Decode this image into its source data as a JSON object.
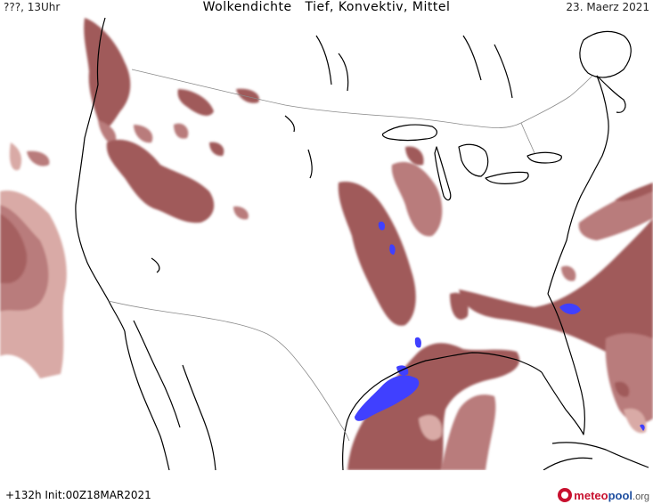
{
  "header": {
    "left_label": "???, 13Uhr",
    "title": "Wolkendichte   Tief, Konvektiv, Mittel",
    "date": "23. Maerz 2021"
  },
  "footer": {
    "run_info": "+132h  Init:00Z18MAR2021",
    "brand_part1": "meteo",
    "brand_part2": "pool",
    "brand_part3": ".org"
  },
  "colors": {
    "cloud_dark": "#a05a5a",
    "cloud_mid": "#b97b7b",
    "cloud_light": "#d9aaa6",
    "convective_blue": "#4040ff",
    "coast": "#000000",
    "border": "#8a8a8a"
  }
}
